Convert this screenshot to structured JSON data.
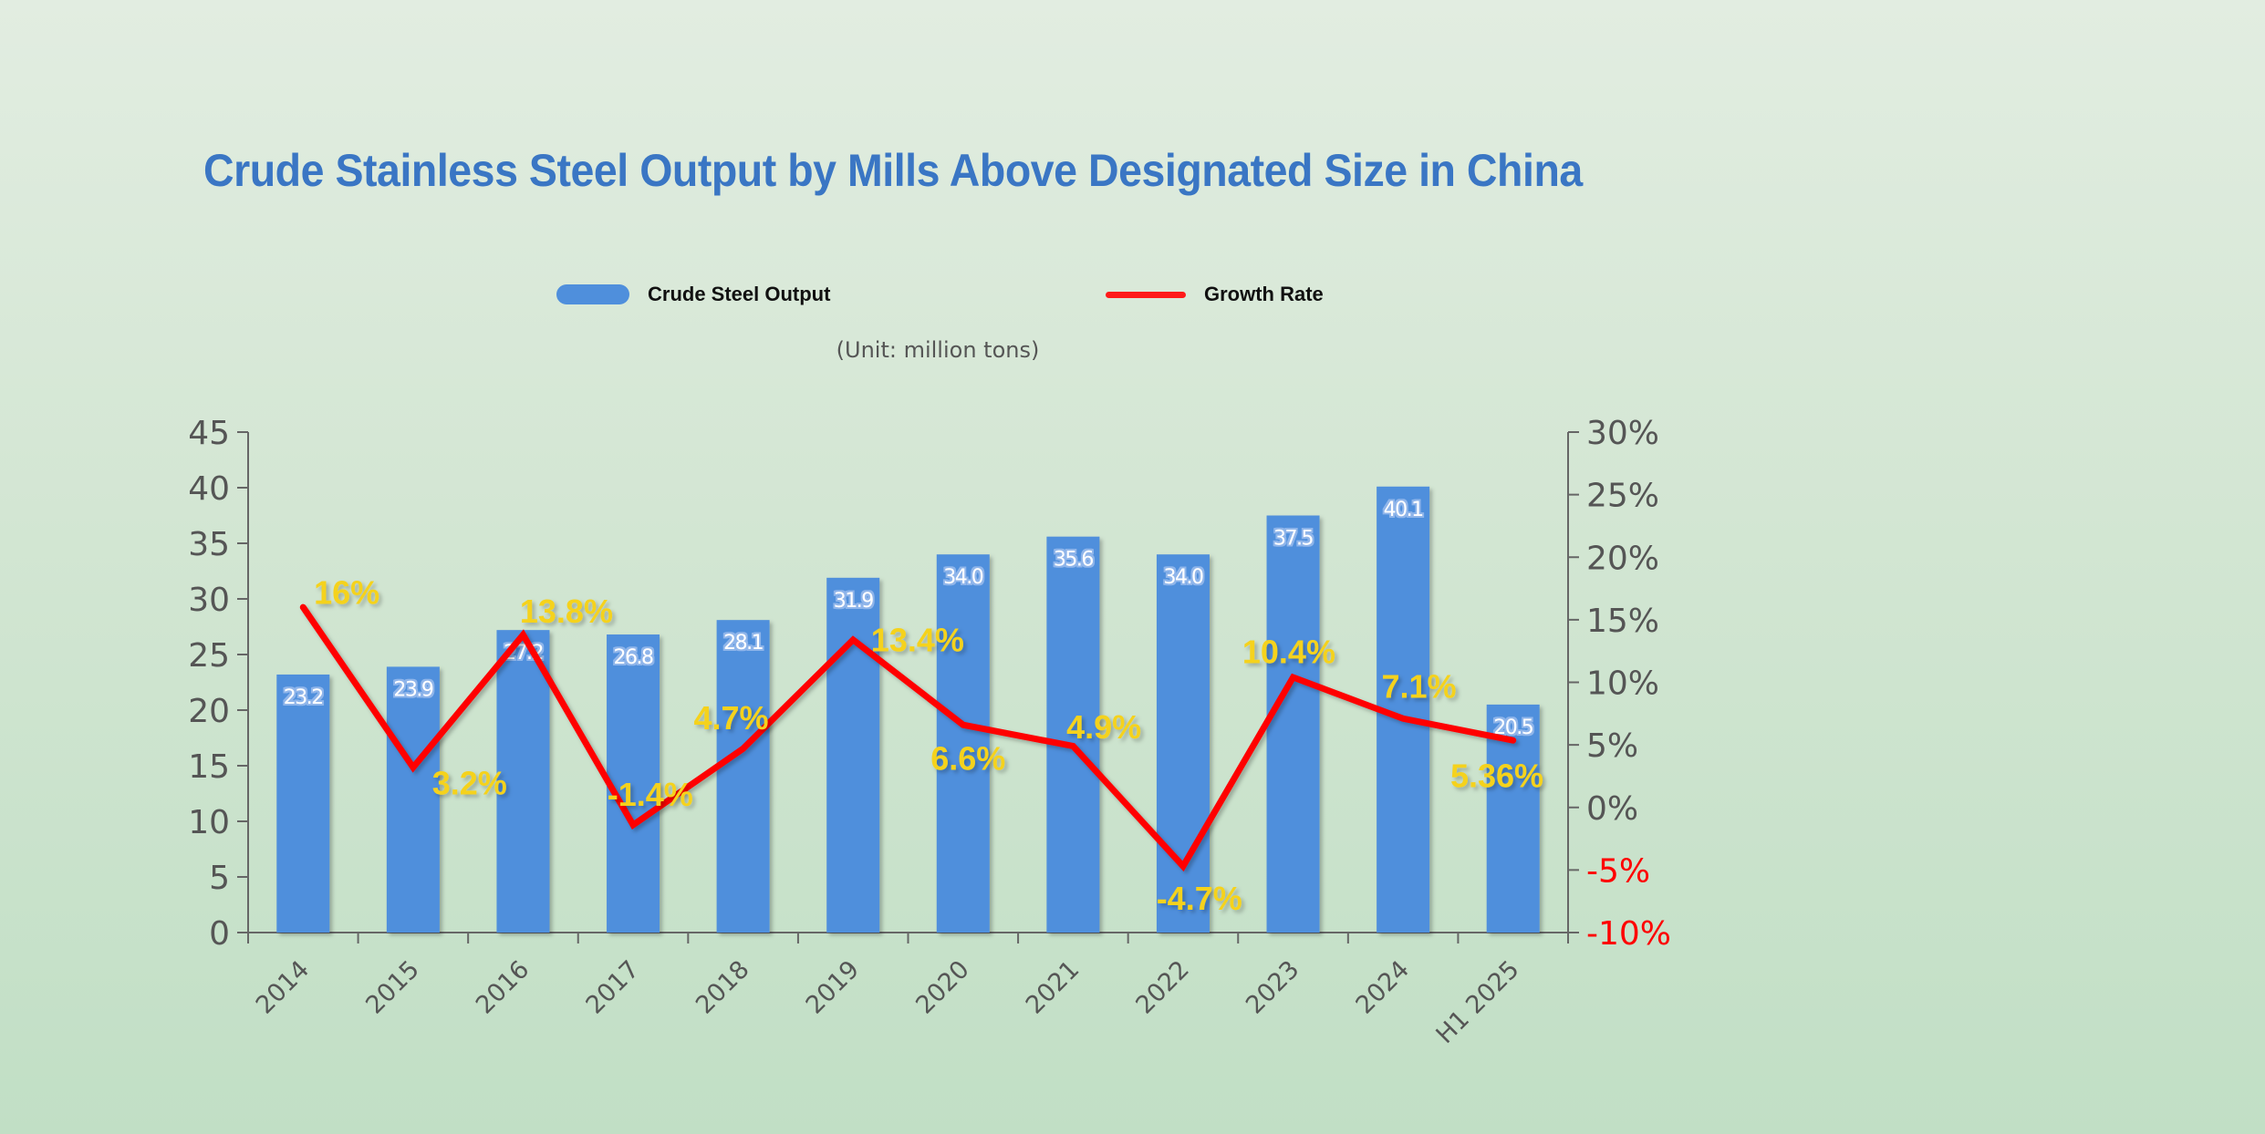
{
  "chart_data": {
    "type": "bar+line",
    "title": "Crude Stainless Steel Output by Mills Above Designated Size in China",
    "unit_note": "(Unit: million tons)",
    "categories": [
      "2014",
      "2015",
      "2016",
      "2017",
      "2018",
      "2019",
      "2020",
      "2021",
      "2022",
      "2023",
      "2024",
      "H1 2025"
    ],
    "series": [
      {
        "name": "Crude Steel Output",
        "type": "bar",
        "axis": "left",
        "color": "#4f8fdc",
        "values": [
          23.2,
          23.9,
          27.2,
          26.8,
          28.1,
          31.9,
          34.0,
          35.6,
          34.0,
          37.5,
          40.1,
          20.5
        ],
        "labels": [
          "23.2",
          "23.9",
          "27.2",
          "26.8",
          "28.1",
          "31.9",
          "34.0",
          "35.6",
          "34.0",
          "37.5",
          "40.1",
          "20.5"
        ]
      },
      {
        "name": "Growth Rate",
        "type": "line",
        "axis": "right",
        "color": "#ff0000",
        "values": [
          16,
          3.2,
          13.8,
          -1.4,
          4.7,
          13.4,
          6.6,
          4.9,
          -4.7,
          10.4,
          7.1,
          5.36
        ],
        "labels": [
          "16%",
          "3.2%",
          "13.8%",
          "-1.4%",
          "4.7%",
          "13.4%",
          "6.6%",
          "4.9%",
          "-4.7%",
          "10.4%",
          "7.1%",
          "5.36%"
        ]
      }
    ],
    "y_left": {
      "range": [
        0,
        45
      ],
      "ticks": [
        "0",
        "5",
        "10",
        "15",
        "20",
        "25",
        "30",
        "35",
        "40",
        "45"
      ]
    },
    "y_right": {
      "range": [
        -10,
        30
      ],
      "ticks": [
        "-10%",
        "-5%",
        "0%",
        "5%",
        "10%",
        "15%",
        "20%",
        "25%",
        "30%"
      ],
      "negative_tick_color": "#ff0000"
    },
    "legend_placement": "top",
    "grid": false,
    "colors": {
      "title": "#3a76c4",
      "data_label": "#f5d21f",
      "axis": "#666666"
    }
  }
}
